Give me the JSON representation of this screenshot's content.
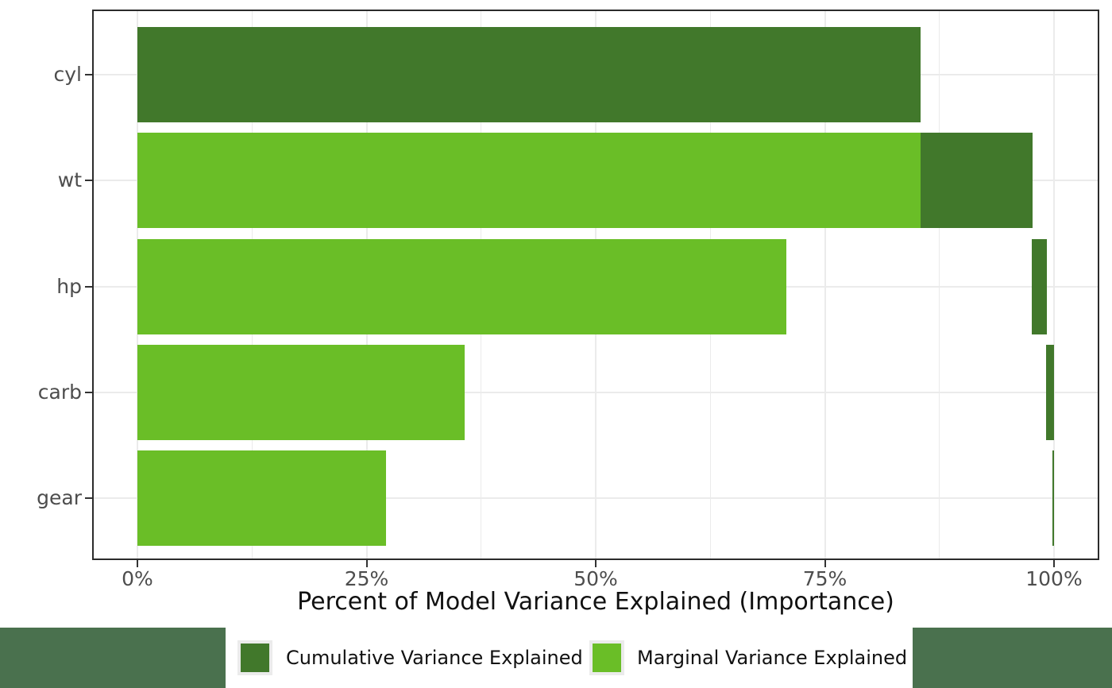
{
  "chart_data": {
    "type": "bar",
    "orientation": "horizontal",
    "title": "",
    "xlabel": "Percent of Model Variance Explained (Importance)",
    "ylabel": "",
    "xlim": [
      0,
      100
    ],
    "grid": true,
    "legend_position": "bottom",
    "categories": [
      "cyl",
      "wt",
      "hp",
      "carb",
      "gear"
    ],
    "x_ticks": [
      {
        "value": 0,
        "label": "0%"
      },
      {
        "value": 25,
        "label": "25%"
      },
      {
        "value": 50,
        "label": "50%"
      },
      {
        "value": 75,
        "label": "75%"
      },
      {
        "value": 100,
        "label": "100%"
      }
    ],
    "minor_gridlines": [
      12.5,
      37.5,
      62.5,
      87.5
    ],
    "series": [
      {
        "name": "Marginal Variance Explained",
        "color": "#6abe27",
        "values": [
          85.4,
          85.4,
          70.8,
          35.7,
          27.1
        ]
      },
      {
        "name": "Cumulative Variance Explained",
        "color": "#41782b",
        "segments": [
          [
            0,
            85.4
          ],
          [
            85.4,
            97.7
          ],
          [
            97.6,
            99.2
          ],
          [
            99.1,
            100
          ],
          [
            99.85,
            100
          ]
        ],
        "cumulative_totals": [
          85.4,
          97.7,
          99.2,
          100,
          100
        ]
      }
    ]
  },
  "legend": {
    "items": [
      {
        "label": "Cumulative Variance Explained",
        "color": "#41782b"
      },
      {
        "label": "Marginal Variance Explained",
        "color": "#6abe27"
      }
    ]
  },
  "colors": {
    "marginal": "#6abe27",
    "cumulative": "#41782b",
    "page_background": "#ffffff",
    "legend_strip": "#4a714e",
    "gridline": "#ebebeb",
    "panel_border": "#2b2b2b",
    "tick": "#333333",
    "axis_text": "#4d4d4d",
    "title_text": "#111111",
    "legend_key_background": "#ebebeb"
  }
}
